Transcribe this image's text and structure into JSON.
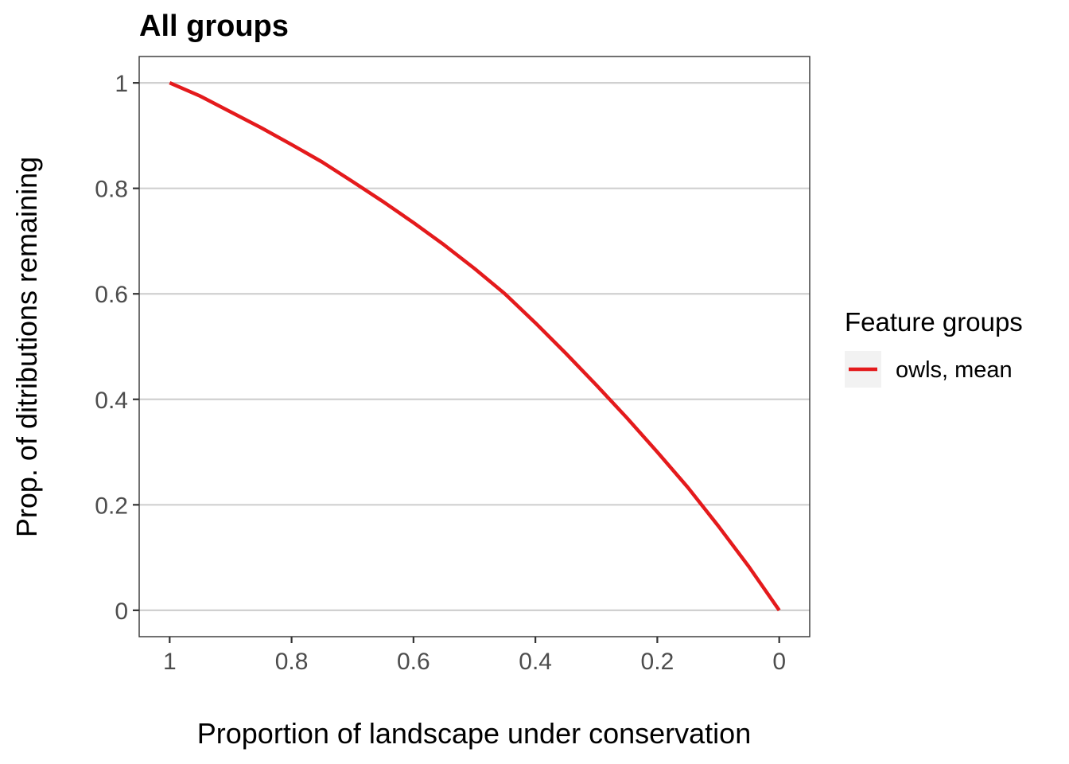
{
  "chart_data": {
    "type": "line",
    "title": "All groups",
    "xlabel": "Proportion of landscape under conservation",
    "ylabel": "Prop. of ditributions remaining",
    "x_reversed": true,
    "xlim": [
      1.05,
      -0.05
    ],
    "ylim": [
      -0.05,
      1.05
    ],
    "x_ticks": [
      1,
      0.8,
      0.6,
      0.4,
      0.2,
      0
    ],
    "x_tick_labels": [
      "1",
      "0.8",
      "0.6",
      "0.4",
      "0.2",
      "0"
    ],
    "y_ticks": [
      0,
      0.2,
      0.4,
      0.6,
      0.8,
      1
    ],
    "y_tick_labels": [
      "0",
      "0.2",
      "0.4",
      "0.6",
      "0.8",
      "1"
    ],
    "grid": "horizontal major",
    "legend": {
      "title": "Feature groups",
      "placement": "right",
      "entries": [
        "owls, mean"
      ]
    },
    "series": [
      {
        "name": "owls, mean",
        "color": "#e41a1c",
        "x": [
          1.0,
          0.95,
          0.9,
          0.85,
          0.8,
          0.75,
          0.7,
          0.65,
          0.6,
          0.55,
          0.5,
          0.45,
          0.4,
          0.35,
          0.3,
          0.25,
          0.2,
          0.15,
          0.1,
          0.05,
          0.0
        ],
        "y": [
          1.0,
          0.975,
          0.945,
          0.915,
          0.883,
          0.85,
          0.813,
          0.775,
          0.735,
          0.693,
          0.648,
          0.6,
          0.545,
          0.487,
          0.427,
          0.365,
          0.3,
          0.233,
          0.16,
          0.083,
          0.0
        ]
      }
    ]
  }
}
